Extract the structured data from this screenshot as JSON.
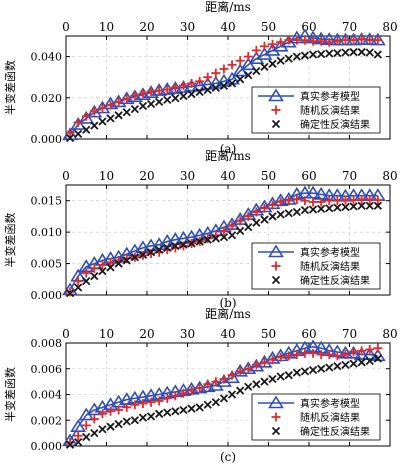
{
  "colors": {
    "ref": "#2f4fb5",
    "random": "#e02a2a",
    "deterministic": "#1a1a1a",
    "grid": "#c8c8c8",
    "axis": "#000000"
  },
  "chart_data": [
    {
      "type": "line",
      "top_axis_label": "距离/ms",
      "ylabel": "半变差函数",
      "caption": "(a)",
      "xlim": [
        0,
        80
      ],
      "ylim": [
        0,
        0.05
      ],
      "xticks": [
        "0",
        "10",
        "20",
        "30",
        "40",
        "50",
        "60",
        "70",
        "80"
      ],
      "yticks": [
        "0.000",
        "0.020",
        "0.040"
      ],
      "legend_position": "bottom-right",
      "x": [
        1,
        3,
        5,
        7,
        9,
        11,
        13,
        15,
        17,
        19,
        21,
        23,
        25,
        27,
        29,
        31,
        33,
        35,
        37,
        39,
        41,
        43,
        45,
        47,
        49,
        51,
        53,
        55,
        57,
        59,
        61,
        63,
        65,
        67,
        69,
        71,
        73,
        75,
        77
      ],
      "series": [
        {
          "name": "真实参考模型",
          "marker": "triangle",
          "values": [
            0.002,
            0.007,
            0.01,
            0.013,
            0.015,
            0.017,
            0.018,
            0.0195,
            0.0205,
            0.0215,
            0.0225,
            0.0235,
            0.024,
            0.0245,
            0.025,
            0.0255,
            0.026,
            0.0265,
            0.027,
            0.028,
            0.029,
            0.033,
            0.036,
            0.039,
            0.041,
            0.043,
            0.045,
            0.047,
            0.049,
            0.05,
            0.049,
            0.0485,
            0.0482,
            0.048,
            0.048,
            0.048,
            0.0482,
            0.0482,
            0.048
          ]
        },
        {
          "name": "随机反演结果",
          "marker": "plus",
          "values": [
            0.003,
            0.008,
            0.011,
            0.0135,
            0.015,
            0.0165,
            0.018,
            0.0195,
            0.021,
            0.022,
            0.023,
            0.0235,
            0.024,
            0.025,
            0.026,
            0.027,
            0.028,
            0.03,
            0.032,
            0.034,
            0.036,
            0.038,
            0.04,
            0.043,
            0.045,
            0.046,
            0.047,
            0.048,
            0.048,
            0.048,
            0.0475,
            0.0475,
            0.047,
            0.0475,
            0.048,
            0.048,
            0.0485,
            0.048,
            0.048
          ]
        },
        {
          "name": "确定性反演结果",
          "marker": "x",
          "values": [
            0.0005,
            0.0025,
            0.0045,
            0.0065,
            0.0085,
            0.01,
            0.0115,
            0.013,
            0.0145,
            0.016,
            0.017,
            0.018,
            0.019,
            0.0198,
            0.0208,
            0.0218,
            0.0228,
            0.0238,
            0.0248,
            0.0258,
            0.027,
            0.029,
            0.031,
            0.033,
            0.035,
            0.0365,
            0.038,
            0.039,
            0.04,
            0.0405,
            0.041,
            0.0412,
            0.0415,
            0.0417,
            0.042,
            0.0422,
            0.0422,
            0.042,
            0.041
          ]
        }
      ]
    },
    {
      "type": "line",
      "top_axis_label": "距离/ms",
      "ylabel": "半变差函数",
      "caption": "(b)",
      "xlim": [
        0,
        80
      ],
      "ylim": [
        0,
        0.0175
      ],
      "xticks": [
        "0",
        "10",
        "20",
        "30",
        "40",
        "50",
        "60",
        "70",
        "80"
      ],
      "yticks": [
        "0.000",
        "0.005",
        "0.010",
        "0.015"
      ],
      "legend_position": "bottom-right",
      "x": [
        1,
        3,
        5,
        7,
        9,
        11,
        13,
        15,
        17,
        19,
        21,
        23,
        25,
        27,
        29,
        31,
        33,
        35,
        37,
        39,
        41,
        43,
        45,
        47,
        49,
        51,
        53,
        55,
        57,
        59,
        61,
        63,
        65,
        67,
        69,
        71,
        73,
        75,
        77
      ],
      "series": [
        {
          "name": "真实参考模型",
          "marker": "triangle",
          "values": [
            0.0008,
            0.003,
            0.0045,
            0.005,
            0.0055,
            0.0058,
            0.006,
            0.0065,
            0.007,
            0.0075,
            0.0078,
            0.008,
            0.0085,
            0.0088,
            0.009,
            0.0092,
            0.0095,
            0.0098,
            0.0102,
            0.0108,
            0.0112,
            0.012,
            0.0128,
            0.0135,
            0.014,
            0.0145,
            0.015,
            0.0152,
            0.016,
            0.0162,
            0.0162,
            0.016,
            0.0158,
            0.0158,
            0.0157,
            0.0158,
            0.0158,
            0.0158,
            0.0158
          ]
        },
        {
          "name": "随机反演结果",
          "marker": "plus",
          "values": [
            0.0005,
            0.0022,
            0.0035,
            0.0042,
            0.0048,
            0.0052,
            0.0055,
            0.0058,
            0.006,
            0.0063,
            0.0066,
            0.0068,
            0.0072,
            0.0075,
            0.0078,
            0.0082,
            0.0085,
            0.009,
            0.0095,
            0.0102,
            0.011,
            0.0118,
            0.0125,
            0.0132,
            0.0138,
            0.0143,
            0.0148,
            0.015,
            0.0152,
            0.015,
            0.0148,
            0.0148,
            0.015,
            0.015,
            0.0151,
            0.0151,
            0.0152,
            0.0152,
            0.0151
          ]
        },
        {
          "name": "确定性反演结果",
          "marker": "x",
          "values": [
            0.0003,
            0.0012,
            0.0022,
            0.003,
            0.0038,
            0.0044,
            0.005,
            0.0055,
            0.006,
            0.0064,
            0.0068,
            0.0072,
            0.0075,
            0.0078,
            0.008,
            0.0082,
            0.0085,
            0.0088,
            0.009,
            0.0092,
            0.0095,
            0.0102,
            0.0108,
            0.0115,
            0.012,
            0.0125,
            0.0128,
            0.013,
            0.0132,
            0.0135,
            0.0136,
            0.0137,
            0.0138,
            0.0139,
            0.014,
            0.0141,
            0.0142,
            0.0142,
            0.0142
          ]
        }
      ]
    },
    {
      "type": "line",
      "top_axis_label": "距离/ms",
      "ylabel": "半变差函数",
      "caption": "(c)",
      "xlim": [
        0,
        80
      ],
      "ylim": [
        0,
        0.008
      ],
      "xticks": [
        "0",
        "10",
        "20",
        "30",
        "40",
        "50",
        "60",
        "70",
        "80"
      ],
      "yticks": [
        "0.000",
        "0.002",
        "0.004",
        "0.006",
        "0.008"
      ],
      "legend_position": "bottom-right",
      "x": [
        1,
        3,
        5,
        7,
        9,
        11,
        13,
        15,
        17,
        19,
        21,
        23,
        25,
        27,
        29,
        31,
        33,
        35,
        37,
        39,
        41,
        43,
        45,
        47,
        49,
        51,
        53,
        55,
        57,
        59,
        61,
        63,
        65,
        67,
        69,
        71,
        73,
        75,
        77
      ],
      "series": [
        {
          "name": "真实参考模型",
          "marker": "triangle",
          "values": [
            0.0004,
            0.0015,
            0.0024,
            0.0028,
            0.003,
            0.0032,
            0.0034,
            0.0036,
            0.0037,
            0.0038,
            0.0039,
            0.004,
            0.0041,
            0.0042,
            0.0043,
            0.0044,
            0.0045,
            0.0046,
            0.0047,
            0.005,
            0.0053,
            0.0058,
            0.006,
            0.0062,
            0.0065,
            0.0068,
            0.007,
            0.0072,
            0.0074,
            0.0076,
            0.0077,
            0.0076,
            0.0074,
            0.0073,
            0.0072,
            0.0072,
            0.0071,
            0.0071,
            0.007
          ]
        },
        {
          "name": "随机反演结果",
          "marker": "plus",
          "values": [
            0.0003,
            0.0008,
            0.0016,
            0.0021,
            0.0025,
            0.0027,
            0.0028,
            0.003,
            0.0032,
            0.0033,
            0.0034,
            0.0035,
            0.0037,
            0.0039,
            0.0041,
            0.0043,
            0.0045,
            0.0048,
            0.005,
            0.0052,
            0.0055,
            0.0058,
            0.006,
            0.0063,
            0.0065,
            0.0067,
            0.0069,
            0.007,
            0.0071,
            0.0072,
            0.0072,
            0.0071,
            0.0071,
            0.007,
            0.0071,
            0.0073,
            0.0074,
            0.0075,
            0.0076
          ]
        },
        {
          "name": "确定性反演结果",
          "marker": "x",
          "values": [
            0.0001,
            0.0003,
            0.0007,
            0.001,
            0.0013,
            0.0015,
            0.0017,
            0.0019,
            0.002,
            0.0022,
            0.0023,
            0.0025,
            0.0026,
            0.0027,
            0.0028,
            0.0029,
            0.003,
            0.0032,
            0.0034,
            0.0037,
            0.004,
            0.0043,
            0.0046,
            0.0048,
            0.005,
            0.0052,
            0.0054,
            0.0055,
            0.0057,
            0.0058,
            0.0059,
            0.006,
            0.0061,
            0.0062,
            0.0063,
            0.0064,
            0.0065,
            0.0066,
            0.0068
          ]
        }
      ]
    }
  ]
}
